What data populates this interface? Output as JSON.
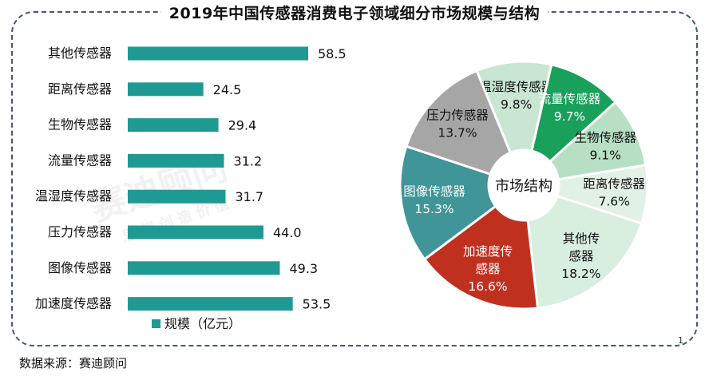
{
  "title": "2019年中国传感器消费电子领域细分市场规模与结构",
  "source": "数据来源：赛迪顾问",
  "corner_marker": "1",
  "watermark": "赛迪顾问",
  "watermark_sub": "思 想 创 造 价 值",
  "colors": {
    "bar": "#1f9a93",
    "frame": "#3d5a80",
    "pie": [
      "#c8e6d2",
      "#19a05a",
      "#b6dfc4",
      "#e2f1e6",
      "#d8eedf",
      "#c0301f",
      "#3f9597",
      "#a6a6a6"
    ]
  },
  "chart_data": [
    {
      "type": "bar",
      "orientation": "horizontal",
      "categories": [
        "其他传感器",
        "距离传感器",
        "生物传感器",
        "流量传感器",
        "温湿度传感器",
        "压力传感器",
        "图像传感器",
        "加速度传感器"
      ],
      "series": [
        {
          "name": "规模（亿元）",
          "values": [
            58.5,
            24.5,
            29.4,
            31.2,
            31.7,
            44.0,
            49.3,
            53.5
          ]
        }
      ],
      "value_labels": [
        "58.5",
        "24.5",
        "29.4",
        "31.2",
        "31.7",
        "44.0",
        "49.3",
        "53.5"
      ],
      "legend": "bottom",
      "xlim": [
        0,
        60
      ]
    },
    {
      "type": "pie",
      "style": "donut",
      "center_label": "市场结构",
      "slices": [
        {
          "label": "温湿度传感器",
          "value": 9.8,
          "value_label": "9.8%"
        },
        {
          "label": "流量传感器",
          "value": 9.7,
          "value_label": "9.7%"
        },
        {
          "label": "生物传感器",
          "value": 9.1,
          "value_label": "9.1%"
        },
        {
          "label": "距离传感器",
          "value": 7.6,
          "value_label": "7.6%"
        },
        {
          "label": "其他传感器",
          "value": 18.2,
          "value_label": "18.2%"
        },
        {
          "label": "加速度传感器",
          "value": 16.6,
          "value_label": "16.6%"
        },
        {
          "label": "图像传感器",
          "value": 15.3,
          "value_label": "15.3%"
        },
        {
          "label": "压力传感器",
          "value": 13.7,
          "value_label": "13.7%"
        }
      ],
      "slice_label_lines": [
        [
          "温湿度传感器"
        ],
        [
          "流量传感器"
        ],
        [
          "生物传感器"
        ],
        [
          "距离传感器"
        ],
        [
          "其他传",
          "感器"
        ],
        [
          "加速度传",
          "感器"
        ],
        [
          "图像传感器"
        ],
        [
          "压力传感器"
        ]
      ]
    }
  ]
}
